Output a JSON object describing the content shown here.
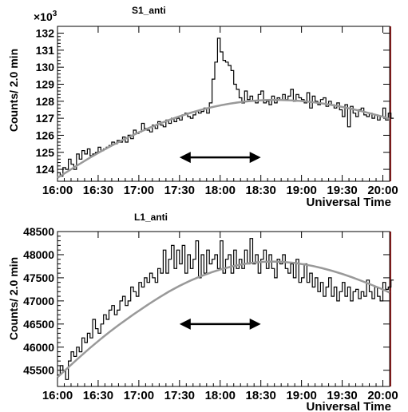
{
  "chart_data": [
    {
      "type": "line",
      "title": "S1_anti",
      "ylabel": "Counts/ 2.0 min",
      "xlabel": "Universal Time",
      "y_exponent_label": "×10",
      "y_exponent_sup": "3",
      "xlim": [
        "16:00",
        "20:05"
      ],
      "ylim": [
        123.3,
        132.4
      ],
      "y_ticks": [
        124,
        125,
        126,
        127,
        128,
        129,
        130,
        131,
        132
      ],
      "y_tick_labels": [
        "124",
        "125",
        "126",
        "127",
        "128",
        "129",
        "130",
        "131",
        "132"
      ],
      "x_tick_labels": [
        "16:00",
        "16:30",
        "17:00",
        "17:30",
        "18:00",
        "18:30",
        "19:00",
        "19:30",
        "20:00"
      ],
      "arrow": {
        "from": "17:30",
        "to": "18:30",
        "y": 124.7
      },
      "series": [
        {
          "style": "histogram",
          "color": "#000000",
          "bin_minutes": 2,
          "x_start": "16:00",
          "values": [
            123.8,
            123.6,
            124.1,
            124.0,
            124.6,
            124.3,
            124.0,
            124.9,
            124.6,
            125.1,
            124.9,
            125.2,
            124.8,
            124.9,
            125.0,
            125.3,
            125.1,
            125.2,
            125.3,
            125.4,
            125.6,
            125.5,
            125.7,
            125.6,
            125.9,
            125.6,
            126.0,
            125.8,
            126.3,
            126.1,
            126.2,
            126.7,
            126.4,
            126.3,
            126.2,
            126.6,
            126.4,
            126.8,
            126.6,
            126.5,
            126.9,
            126.7,
            127.0,
            126.8,
            127.0,
            126.9,
            127.2,
            127.3,
            127.1,
            127.0,
            127.2,
            127.4,
            127.3,
            127.4,
            127.6,
            127.3,
            127.9,
            129.3,
            130.3,
            131.7,
            130.9,
            130.4,
            130.3,
            130.1,
            129.8,
            129.0,
            128.7,
            128.2,
            127.9,
            128.6,
            128.1,
            128.3,
            128.0,
            127.9,
            128.4,
            128.6,
            127.9,
            128.0,
            127.8,
            128.3,
            127.9,
            128.2,
            128.1,
            128.4,
            128.1,
            128.3,
            128.7,
            128.0,
            128.4,
            128.2,
            128.1,
            127.9,
            128.5,
            127.6,
            128.3,
            128.0,
            127.8,
            128.1,
            128.2,
            127.7,
            128.0,
            127.8,
            127.6,
            127.9,
            127.5,
            127.1,
            127.8,
            126.5,
            127.7,
            127.3,
            127.1,
            127.5,
            127.6,
            127.2,
            127.1,
            127.3,
            127.0,
            127.2,
            126.9,
            127.1,
            127.6,
            126.9,
            127.3,
            127.0
          ]
        },
        {
          "style": "fit",
          "color": "#999999",
          "x": [
            "16:00",
            "16:30",
            "17:00",
            "17:30",
            "18:00",
            "18:30",
            "19:00",
            "19:30",
            "20:00",
            "20:05"
          ],
          "values": [
            123.5,
            125.0,
            126.2,
            127.15,
            127.8,
            128.1,
            128.05,
            127.7,
            127.1,
            126.95
          ]
        }
      ]
    },
    {
      "type": "line",
      "title": "L1_anti",
      "ylabel": "Counts/ 2.0 min",
      "xlabel": "Universal Time",
      "xlim": [
        "16:00",
        "20:05"
      ],
      "ylim": [
        45150,
        48500
      ],
      "y_ticks": [
        45500,
        46000,
        46500,
        47000,
        47500,
        48000,
        48500
      ],
      "y_tick_labels": [
        "45500",
        "46000",
        "46500",
        "47000",
        "47500",
        "48000",
        "48500"
      ],
      "x_tick_labels": [
        "16:00",
        "16:30",
        "17:00",
        "17:30",
        "18:00",
        "18:30",
        "19:00",
        "19:30",
        "20:00"
      ],
      "arrow": {
        "from": "17:30",
        "to": "18:30",
        "y": 46500
      },
      "series": [
        {
          "style": "histogram",
          "color": "#000000",
          "bin_minutes": 2,
          "x_start": "16:00",
          "values": [
            45400,
            45600,
            45500,
            45300,
            45700,
            45900,
            45800,
            46000,
            45900,
            46200,
            46100,
            46300,
            46200,
            46600,
            46400,
            46300,
            46500,
            46700,
            46600,
            46800,
            46900,
            46700,
            46800,
            47000,
            47100,
            46900,
            47000,
            47300,
            47200,
            47100,
            47400,
            47300,
            47500,
            47400,
            47600,
            47500,
            47400,
            47700,
            47600,
            48100,
            47600,
            47900,
            48200,
            47700,
            48100,
            47800,
            48200,
            47600,
            48000,
            47700,
            47900,
            48300,
            47500,
            48000,
            47600,
            48100,
            47800,
            47900,
            48000,
            47700,
            48300,
            47600,
            47900,
            48000,
            47600,
            48100,
            47700,
            47900,
            47700,
            48100,
            47800,
            48350,
            47800,
            48000,
            47600,
            47900,
            48100,
            47700,
            48000,
            47700,
            47500,
            47900,
            47800,
            48000,
            47700,
            47600,
            47800,
            47500,
            47900,
            47400,
            47500,
            47800,
            47400,
            47600,
            47300,
            47500,
            47200,
            47400,
            47100,
            47300,
            47500,
            47100,
            47300,
            47000,
            47200,
            47400,
            47100,
            47300,
            47000,
            47200,
            47250,
            47050,
            47200,
            47100,
            47450,
            47200,
            47050,
            47300,
            47100,
            47000,
            47400,
            47250,
            47300,
            47450
          ]
        },
        {
          "style": "fit",
          "color": "#999999",
          "x": [
            "16:00",
            "16:30",
            "17:00",
            "17:30",
            "18:00",
            "18:30",
            "19:00",
            "19:30",
            "20:00",
            "20:05"
          ],
          "values": [
            45350,
            46150,
            46800,
            47350,
            47700,
            47870,
            47820,
            47600,
            47250,
            47180
          ]
        }
      ]
    }
  ]
}
